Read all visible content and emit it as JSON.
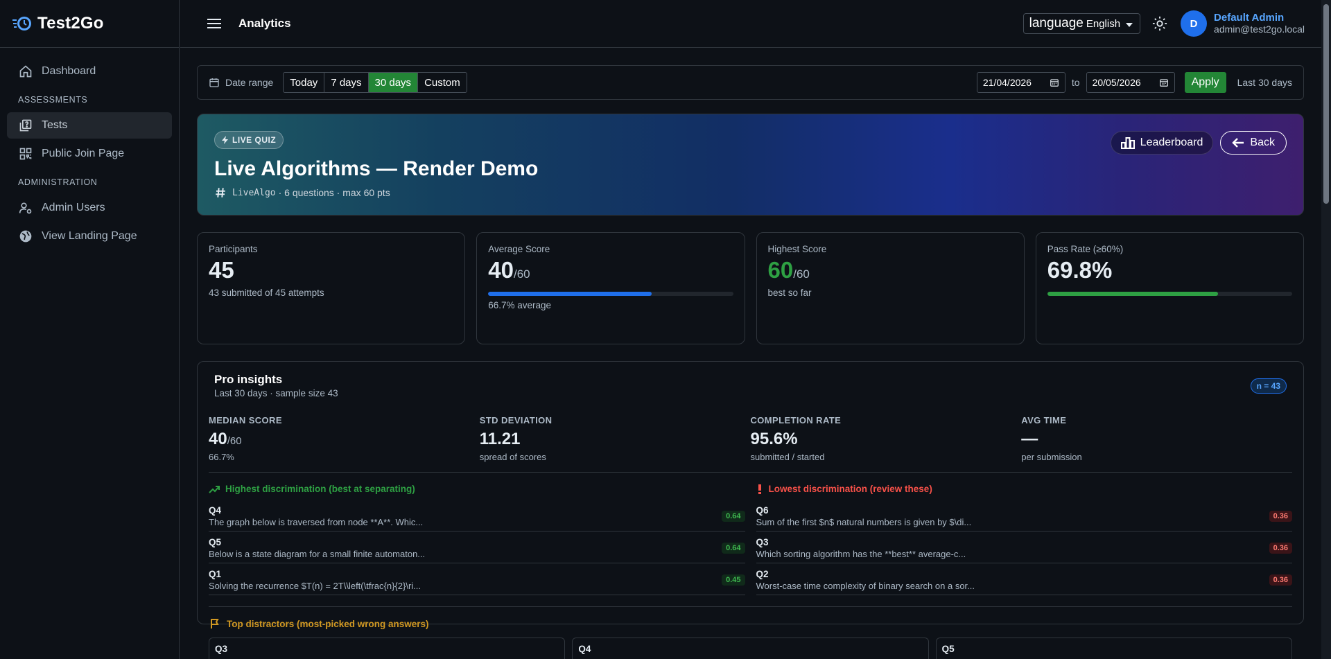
{
  "brand": {
    "name": "Test2Go"
  },
  "sidebar": {
    "items": [
      {
        "label": "Dashboard",
        "icon": "home-icon"
      },
      {
        "section": "ASSESSMENTS"
      },
      {
        "label": "Tests",
        "icon": "quiz-icon",
        "active": true
      },
      {
        "label": "Public Join Page",
        "icon": "qr-code-icon"
      },
      {
        "section": "ADMINISTRATION"
      },
      {
        "label": "Admin Users",
        "icon": "user-gear-icon"
      },
      {
        "label": "View Landing Page",
        "icon": "globe-icon"
      }
    ],
    "dashboard": "Dashboard",
    "section_assessments": "ASSESSMENTS",
    "tests": "Tests",
    "public_join": "Public Join Page",
    "section_admin": "ADMINISTRATION",
    "admin_users": "Admin Users",
    "landing": "View Landing Page"
  },
  "header": {
    "title": "Analytics",
    "language_label": "language",
    "language_value": "English",
    "avatar_initial": "D",
    "user_name": "Default Admin",
    "user_email": "admin@test2go.local"
  },
  "filter": {
    "label": "Date range",
    "options": [
      "Today",
      "7 days",
      "30 days",
      "Custom"
    ],
    "selected": "30 days",
    "today": "Today",
    "seven": "7 days",
    "thirty": "30 days",
    "custom": "Custom",
    "from": "21/04/2026",
    "to_label": "to",
    "to": "20/05/2026",
    "apply": "Apply",
    "range_label": "Last 30 days"
  },
  "hero": {
    "badge": "LIVE QUIZ",
    "title": "Live Algorithms — Render Demo",
    "code": "LiveAlgo",
    "meta": "· 6 questions · max 60 pts",
    "leaderboard": "Leaderboard",
    "back": "Back"
  },
  "stats": {
    "participants": {
      "label": "Participants",
      "value": "45",
      "sub": "43 submitted of 45 attempts"
    },
    "average": {
      "label": "Average Score",
      "value": "40",
      "of": "/60",
      "sub": "66.7% average",
      "progress": 0.667
    },
    "highest": {
      "label": "Highest Score",
      "value": "60",
      "of": "/60",
      "sub": "best so far"
    },
    "pass": {
      "label": "Pass Rate (≥60%)",
      "value": "69.8%",
      "progress": 0.698
    }
  },
  "insights": {
    "title": "Pro insights",
    "subtitle": "Last 30 days · sample size 43",
    "n_badge": "n = 43",
    "median": {
      "label": "MEDIAN SCORE",
      "value": "40",
      "of": "/60",
      "sub": "66.7%"
    },
    "std": {
      "label": "STD DEVIATION",
      "value": "11.21",
      "sub": "spread of scores"
    },
    "completion": {
      "label": "COMPLETION RATE",
      "value": "95.6%",
      "sub": "submitted / started"
    },
    "avg_time": {
      "label": "AVG TIME",
      "value": "—",
      "sub": "per submission"
    },
    "highest_disc": {
      "title": "Highest discrimination (best at separating)",
      "rows": [
        {
          "q": "Q4",
          "text": "The graph below is traversed from node **A**. Whic...",
          "value": "0.64"
        },
        {
          "q": "Q5",
          "text": "Below is a state diagram for a small finite automaton...",
          "value": "0.64"
        },
        {
          "q": "Q1",
          "text": "Solving the recurrence $T(n) = 2T\\\\left(\\tfrac{n}{2}\\ri...",
          "value": "0.45"
        }
      ]
    },
    "lowest_disc": {
      "title": "Lowest discrimination (review these)",
      "rows": [
        {
          "q": "Q6",
          "text": "Sum of the first $n$ natural numbers is given by $\\di...",
          "value": "0.36"
        },
        {
          "q": "Q3",
          "text": "Which sorting algorithm has the **best** average-c...",
          "value": "0.36"
        },
        {
          "q": "Q2",
          "text": "Worst-case time complexity of binary search on a sor...",
          "value": "0.36"
        }
      ]
    },
    "distractors": {
      "title": "Top distractors (most-picked wrong answers)",
      "cards": [
        "Q3",
        "Q4",
        "Q5"
      ]
    }
  },
  "colors": {
    "accent_green": "#238636",
    "accent_blue": "#1f6feb",
    "danger": "#f85149",
    "warning": "#d29922"
  }
}
